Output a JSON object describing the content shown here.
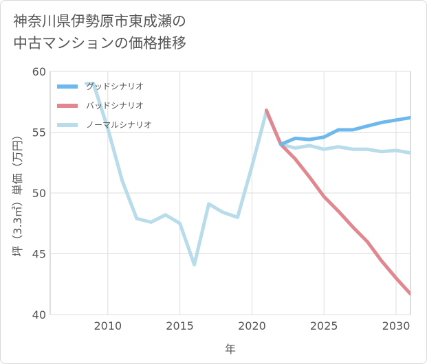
{
  "chart_data": {
    "type": "line",
    "title_lines": [
      "神奈川県伊勢原市東成瀬の",
      "中古マンションの価格推移"
    ],
    "xlabel": "年",
    "ylabel": "坪（3.3㎡）単価（万円）",
    "xlim": [
      2006,
      2031
    ],
    "ylim": [
      40,
      60
    ],
    "xticks": [
      2010,
      2015,
      2020,
      2025,
      2030
    ],
    "yticks": [
      40,
      45,
      50,
      55,
      60
    ],
    "legend_position": "top-left",
    "series": [
      {
        "name": "グッドシナリオ",
        "color": "#6db8ec",
        "x": [
          2022,
          2023,
          2024,
          2025,
          2026,
          2027,
          2028,
          2029,
          2030,
          2031
        ],
        "y": [
          54.0,
          54.5,
          54.4,
          54.6,
          55.2,
          55.2,
          55.5,
          55.8,
          56.0,
          56.2
        ]
      },
      {
        "name": "バッドシナリオ",
        "color": "#e08890",
        "x": [
          2021,
          2022,
          2023,
          2024,
          2025,
          2026,
          2027,
          2028,
          2029,
          2030,
          2031
        ],
        "y": [
          56.8,
          54.0,
          52.8,
          51.3,
          49.7,
          48.5,
          47.2,
          46.0,
          44.4,
          43.0,
          41.7
        ]
      },
      {
        "name": "ノーマルシナリオ",
        "color": "#b8dcea",
        "x": [
          2008.5,
          2009,
          2010,
          2011,
          2012,
          2013,
          2014,
          2015,
          2016,
          2017,
          2018,
          2019,
          2020,
          2021,
          2022,
          2023,
          2024,
          2025,
          2026,
          2027,
          2028,
          2029,
          2030,
          2031
        ],
        "y": [
          59.0,
          59.0,
          55.3,
          51.0,
          47.9,
          47.6,
          48.2,
          47.5,
          44.1,
          49.1,
          48.4,
          48.0,
          52.2,
          56.7,
          54.0,
          53.7,
          53.9,
          53.6,
          53.8,
          53.6,
          53.6,
          53.4,
          53.5,
          53.3
        ]
      }
    ]
  }
}
